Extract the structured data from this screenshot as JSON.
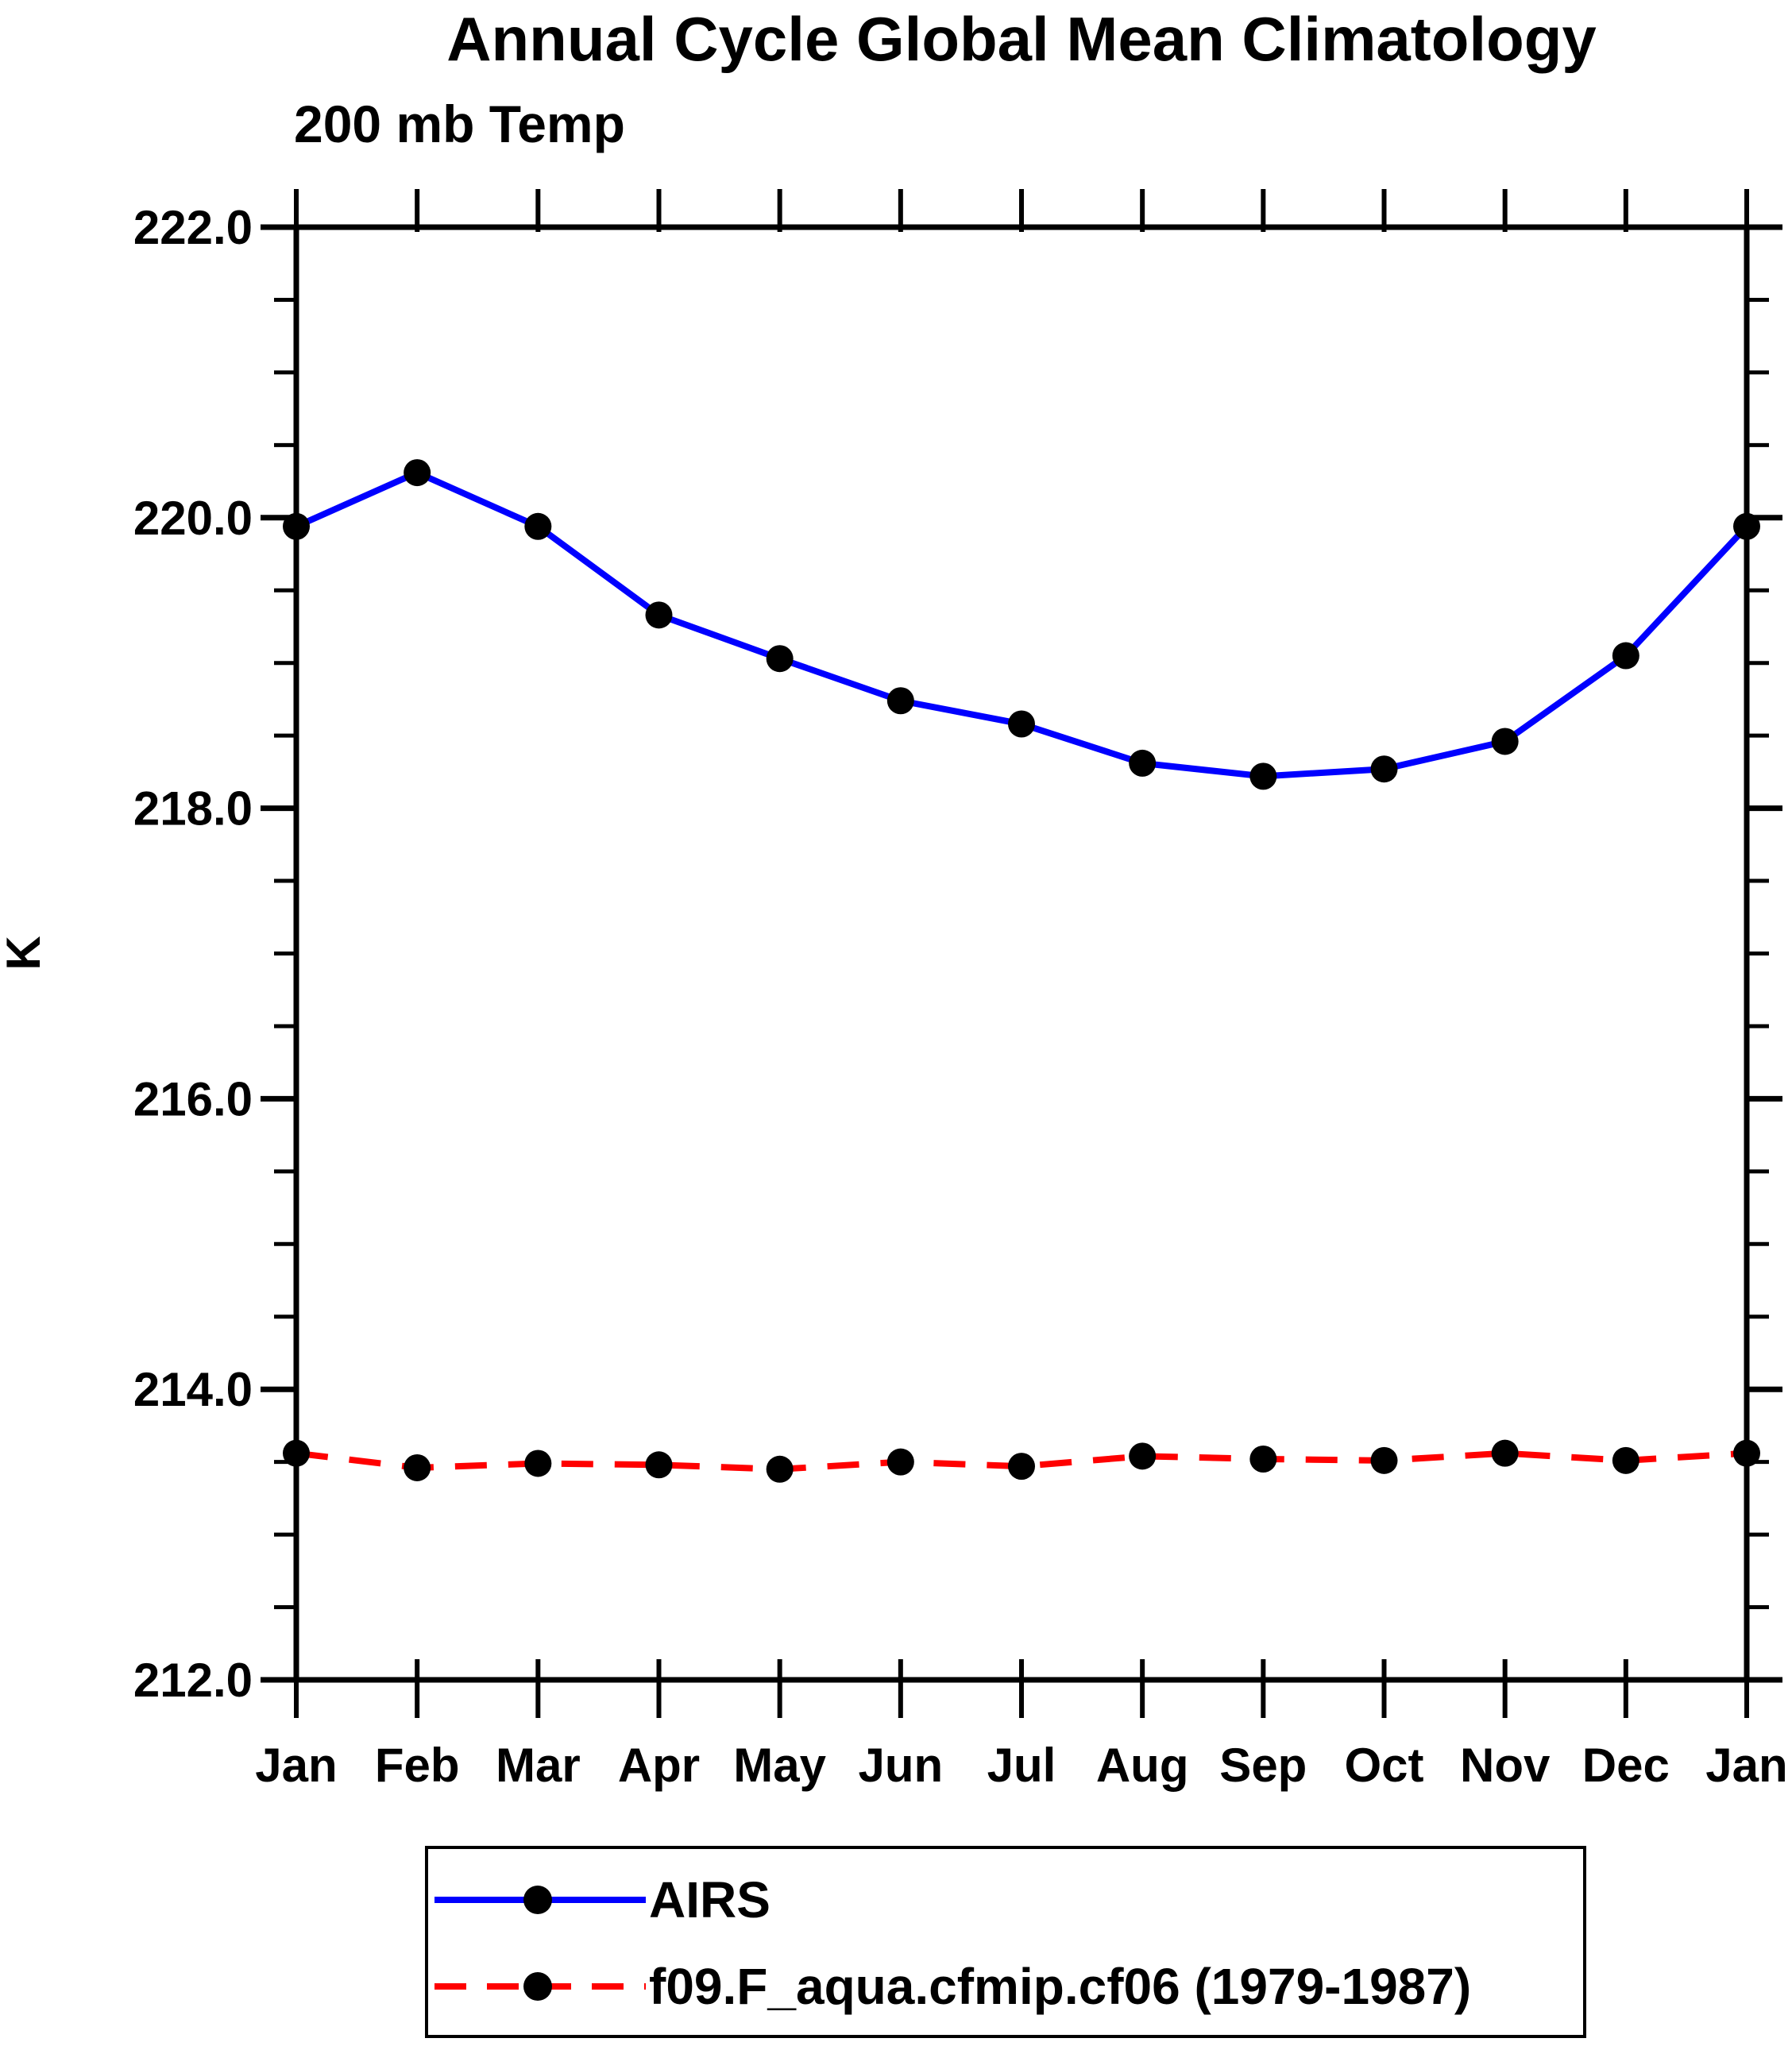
{
  "page": {
    "background": "#ffffff",
    "text_color": "#000000"
  },
  "chart_data": {
    "type": "line",
    "title": "Annual Cycle Global Mean Climatology",
    "subtitle": "200 mb Temp",
    "ylabel": "K",
    "xlabel": "",
    "x_categories": [
      "Jan",
      "Feb",
      "Mar",
      "Apr",
      "May",
      "Jun",
      "Jul",
      "Aug",
      "Sep",
      "Oct",
      "Nov",
      "Dec",
      "Jan"
    ],
    "ylim": [
      212.0,
      222.0
    ],
    "y_major_tick_values": [
      212.0,
      214.0,
      216.0,
      218.0,
      220.0,
      222.0
    ],
    "y_tick_labels": [
      "212.0",
      "214.0",
      "216.0",
      "218.0",
      "220.0",
      "222.0"
    ],
    "y_minor_step": 0.5,
    "grid": false,
    "legend_position": "bottom-center-box",
    "series": [
      {
        "name": "AIRS",
        "color": "#0000FF",
        "line_style": "solid",
        "marker": "filled-circle",
        "marker_color": "#000000",
        "values": [
          219.94,
          220.31,
          219.94,
          219.33,
          219.03,
          218.74,
          218.58,
          218.31,
          218.22,
          218.27,
          218.46,
          219.05,
          219.94
        ]
      },
      {
        "name": "f09.F_aqua.cfmip.cf06 (1979-1987)",
        "color": "#FF0000",
        "line_style": "dashed",
        "marker": "filled-circle",
        "marker_color": "#000000",
        "values": [
          213.56,
          213.46,
          213.49,
          213.48,
          213.45,
          213.5,
          213.47,
          213.54,
          213.52,
          213.51,
          213.56,
          213.51,
          213.56
        ]
      }
    ]
  }
}
